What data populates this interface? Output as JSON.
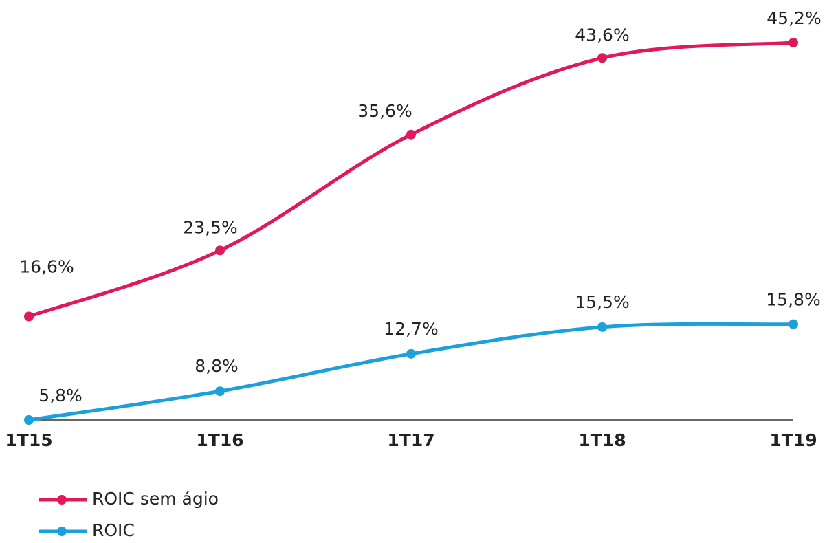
{
  "chart_data": {
    "type": "line",
    "categories": [
      "1T15",
      "1T16",
      "1T17",
      "1T18",
      "1T19"
    ],
    "series": [
      {
        "name": "ROIC sem ágio",
        "color": "#e0195a",
        "values": [
          16.6,
          23.5,
          35.6,
          43.6,
          45.2
        ],
        "value_labels": [
          "16,6%",
          "23,5%",
          "35,6%",
          "43,6%",
          "45,2%"
        ]
      },
      {
        "name": "ROIC",
        "color": "#1ba0db",
        "values": [
          5.8,
          8.8,
          12.7,
          15.5,
          15.8
        ],
        "value_labels": [
          "5,8%",
          "8,8%",
          "12,7%",
          "15,5%",
          "15,8%"
        ]
      }
    ]
  }
}
